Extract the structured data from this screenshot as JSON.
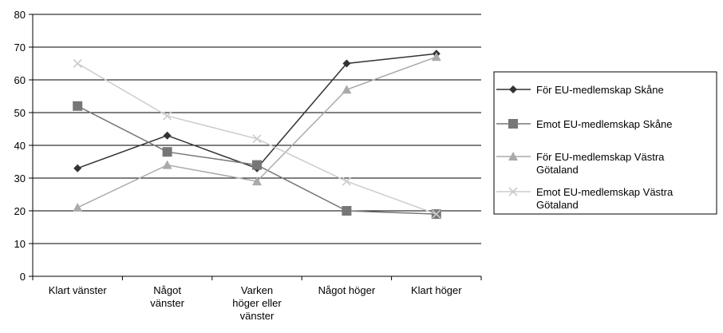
{
  "chart_data": {
    "type": "line",
    "title": "",
    "xlabel": "",
    "ylabel": "",
    "ylim": [
      0,
      80
    ],
    "yticks": [
      0,
      10,
      20,
      30,
      40,
      50,
      60,
      70,
      80
    ],
    "grid": "horizontal",
    "legend": "right",
    "categories": [
      [
        "Klart vänster"
      ],
      [
        "Något",
        "vänster"
      ],
      [
        "Varken",
        "höger eller",
        "vänster"
      ],
      [
        "Något höger"
      ],
      [
        "Klart höger"
      ]
    ],
    "series": [
      {
        "name": [
          "För EU-medlemskap Skåne"
        ],
        "values": [
          33,
          43,
          33,
          65,
          68
        ],
        "color": "#333333",
        "marker": "diamond"
      },
      {
        "name": [
          "Emot EU-medlemskap Skåne"
        ],
        "values": [
          52,
          38,
          34,
          20,
          19
        ],
        "color": "#777777",
        "marker": "square"
      },
      {
        "name": [
          "För EU-medlemskap Västra",
          "Götaland"
        ],
        "values": [
          21,
          34,
          29,
          57,
          67
        ],
        "color": "#aaaaaa",
        "marker": "triangle"
      },
      {
        "name": [
          "Emot EU-medlemskap Västra",
          "Götaland"
        ],
        "values": [
          65,
          49,
          42,
          29,
          19
        ],
        "color": "#cccccc",
        "marker": "x"
      }
    ]
  }
}
